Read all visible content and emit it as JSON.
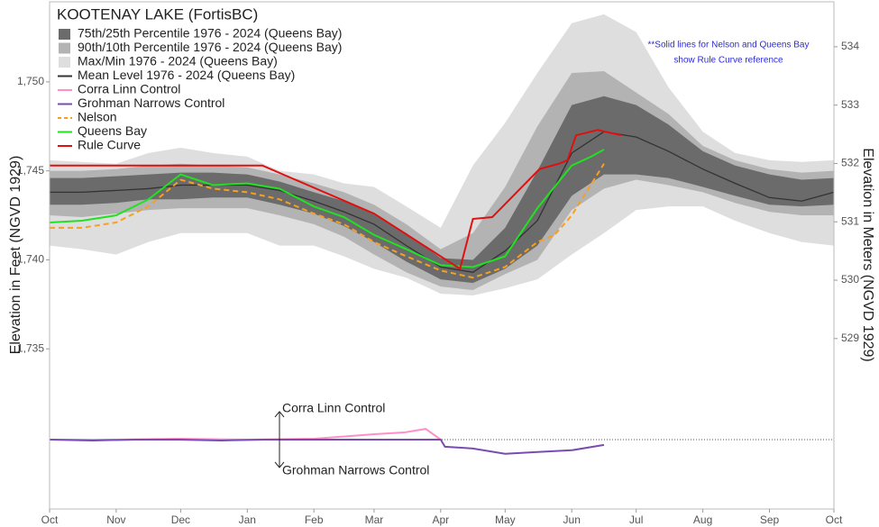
{
  "chart_data": {
    "type": "line",
    "title": "KOOTENAY LAKE (FortisBC)",
    "ylabel": "Elevation in Feet (NGVD 1929)",
    "y2label": "Elevation in Meters (NGVD 1929)",
    "note": [
      "**Solid lines for Nelson and Queens Bay",
      "show Rule Curve reference"
    ],
    "annotations": [
      "Corra Linn Control",
      "Grohman Narrows Control"
    ],
    "reference_line": 1729.9,
    "xlim": [
      0,
      365
    ],
    "xticks": [
      {
        "value": 0,
        "label": "Oct"
      },
      {
        "value": 31,
        "label": "Nov"
      },
      {
        "value": 61,
        "label": "Dec"
      },
      {
        "value": 92,
        "label": "Jan"
      },
      {
        "value": 123,
        "label": "Feb"
      },
      {
        "value": 151,
        "label": "Mar"
      },
      {
        "value": 182,
        "label": "Apr"
      },
      {
        "value": 212,
        "label": "May"
      },
      {
        "value": 243,
        "label": "Jun"
      },
      {
        "value": 273,
        "label": "Jul"
      },
      {
        "value": 304,
        "label": "Aug"
      },
      {
        "value": 335,
        "label": "Sep"
      },
      {
        "value": 365,
        "label": "Oct"
      }
    ],
    "ylim": [
      1726,
      1754.5
    ],
    "yticks": [
      {
        "value": 1735,
        "label": "1,735"
      },
      {
        "value": 1740,
        "label": "1,740"
      },
      {
        "value": 1745,
        "label": "1,745"
      },
      {
        "value": 1750,
        "label": "1,750"
      }
    ],
    "y2lim": [
      526.08,
      534.77
    ],
    "y2ticks": [
      529,
      530,
      531,
      532,
      533,
      534
    ],
    "x": [
      0,
      15,
      31,
      46,
      61,
      76,
      92,
      107,
      123,
      137,
      151,
      166,
      182,
      197,
      212,
      227,
      243,
      258,
      273,
      288,
      304,
      319,
      335,
      350,
      365
    ],
    "series": [
      {
        "name": "75th/25th Percentile 1976 - 2024 (Queens Bay)",
        "type": "band",
        "color": "#6b6b6b",
        "upper": [
          1744.6,
          1744.6,
          1744.7,
          1744.8,
          1744.9,
          1744.9,
          1744.8,
          1744.4,
          1743.8,
          1743.3,
          1742.6,
          1741.5,
          1740.1,
          1740.0,
          1741.8,
          1745.0,
          1748.7,
          1749.2,
          1748.7,
          1747.6,
          1746.1,
          1745.3,
          1744.8,
          1744.5,
          1744.6
        ],
        "lower": [
          1743.1,
          1743.1,
          1743.2,
          1743.4,
          1743.4,
          1743.5,
          1743.5,
          1743.1,
          1742.6,
          1741.9,
          1741.0,
          1739.9,
          1738.9,
          1738.7,
          1739.5,
          1740.8,
          1743.6,
          1744.8,
          1744.8,
          1744.6,
          1744.1,
          1743.6,
          1743.1,
          1743.0,
          1743.1
        ]
      },
      {
        "name": "90th/10th Percentile 1976 - 2024 (Queens Bay)",
        "type": "band",
        "color": "#b3b3b3",
        "upper": [
          1745.0,
          1745.0,
          1745.1,
          1745.3,
          1745.4,
          1745.3,
          1745.2,
          1744.8,
          1744.3,
          1743.8,
          1743.1,
          1742.0,
          1740.6,
          1741.5,
          1744.1,
          1747.5,
          1750.5,
          1750.6,
          1749.4,
          1748.2,
          1746.4,
          1745.6,
          1745.1,
          1744.9,
          1745.0
        ],
        "lower": [
          1742.5,
          1742.4,
          1742.6,
          1742.8,
          1742.9,
          1742.9,
          1742.9,
          1742.5,
          1742.0,
          1741.3,
          1740.3,
          1739.3,
          1738.5,
          1738.3,
          1739.2,
          1740.0,
          1742.8,
          1744.0,
          1744.5,
          1744.2,
          1743.8,
          1743.2,
          1742.7,
          1742.5,
          1742.5
        ]
      },
      {
        "name": "Max/Min 1976 - 2024 (Queens Bay)",
        "type": "band",
        "color": "#dedede",
        "upper": [
          1745.6,
          1745.5,
          1745.4,
          1746.0,
          1746.3,
          1746.0,
          1745.8,
          1745.0,
          1744.8,
          1744.3,
          1744.1,
          1743.0,
          1741.8,
          1745.3,
          1747.7,
          1750.5,
          1753.3,
          1753.8,
          1752.8,
          1749.7,
          1747.2,
          1746.0,
          1745.6,
          1745.5,
          1745.6
        ],
        "lower": [
          1740.8,
          1740.6,
          1740.3,
          1741.0,
          1741.5,
          1741.5,
          1741.5,
          1740.8,
          1740.8,
          1740.2,
          1739.5,
          1739.0,
          1738.1,
          1738.0,
          1738.4,
          1738.9,
          1740.3,
          1741.5,
          1742.8,
          1743.0,
          1743.0,
          1742.2,
          1741.5,
          1741.0,
          1740.8
        ]
      },
      {
        "name": "Mean Level 1976 - 2024 (Queens Bay)",
        "type": "line",
        "color": "#333333",
        "values": [
          1743.8,
          1743.8,
          1743.9,
          1744.0,
          1744.2,
          1744.2,
          1744.2,
          1743.9,
          1743.3,
          1742.7,
          1742.0,
          1740.8,
          1739.6,
          1739.3,
          1740.5,
          1742.2,
          1746.0,
          1747.2,
          1746.9,
          1746.1,
          1745.1,
          1744.3,
          1743.5,
          1743.3,
          1743.8
        ]
      },
      {
        "name": "Corra Linn Control",
        "type": "line",
        "color": "#ff8fc8",
        "x": [
          0,
          30,
          60,
          92,
          123,
          140,
          151,
          165,
          175,
          182
        ],
        "values": [
          1729.9,
          1729.9,
          1729.95,
          1729.9,
          1729.95,
          1730.1,
          1730.2,
          1730.3,
          1730.5,
          1729.9
        ]
      },
      {
        "name": "Grohman Narrows Control",
        "type": "line",
        "color": "#7a4bb0",
        "x": [
          0,
          20,
          40,
          60,
          80,
          100,
          123,
          151,
          182,
          184,
          197,
          212,
          227,
          243,
          258
        ],
        "values": [
          1729.9,
          1729.85,
          1729.9,
          1729.9,
          1729.85,
          1729.9,
          1729.9,
          1729.9,
          1729.9,
          1729.5,
          1729.4,
          1729.1,
          1729.2,
          1729.3,
          1729.6
        ]
      },
      {
        "name": "Nelson",
        "type": "line",
        "dashed": true,
        "color": "#f5a020",
        "x": [
          0,
          15,
          31,
          46,
          61,
          76,
          92,
          107,
          123,
          137,
          151,
          166,
          182,
          197,
          212,
          227,
          235,
          243,
          258
        ],
        "values": [
          1741.8,
          1741.8,
          1742.1,
          1743.0,
          1744.5,
          1744.0,
          1743.8,
          1743.4,
          1742.6,
          1742.0,
          1741.0,
          1740.2,
          1739.4,
          1739.0,
          1739.6,
          1741.0,
          1741.4,
          1742.5,
          1745.4
        ]
      },
      {
        "name": "Queens Bay",
        "type": "line",
        "color": "#22e022",
        "x": [
          0,
          15,
          31,
          46,
          61,
          76,
          92,
          107,
          123,
          137,
          151,
          166,
          182,
          197,
          212,
          227,
          243,
          252,
          258
        ],
        "values": [
          1742.1,
          1742.2,
          1742.5,
          1743.4,
          1744.8,
          1744.2,
          1744.3,
          1744.0,
          1743.0,
          1742.4,
          1741.4,
          1740.6,
          1739.7,
          1739.6,
          1740.2,
          1742.9,
          1745.3,
          1745.8,
          1746.2
        ]
      },
      {
        "name": "Rule Curve",
        "type": "line",
        "color": "#e01010",
        "x": [
          0,
          99,
          151,
          191,
          197,
          206,
          228,
          237,
          241,
          245,
          255,
          266
        ],
        "values": [
          1745.3,
          1745.3,
          1742.6,
          1739.5,
          1742.3,
          1742.4,
          1745.1,
          1745.4,
          1745.6,
          1747.0,
          1747.3,
          1747.0
        ]
      }
    ]
  }
}
